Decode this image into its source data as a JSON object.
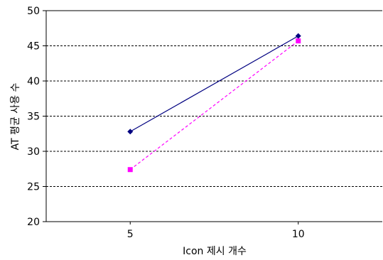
{
  "chart_data": {
    "type": "line",
    "title": "",
    "xlabel": "Icon 제시 개수",
    "ylabel": "AT 평균 사용 수",
    "categories": [
      "5",
      "10"
    ],
    "x": [
      5,
      10
    ],
    "xlim": [
      2.5,
      12.5
    ],
    "ylim": [
      20,
      50
    ],
    "yticks": [
      "20",
      "25",
      "30",
      "35",
      "40",
      "45",
      "50"
    ],
    "grid": "horizontal dashed",
    "legend": "none",
    "series": [
      {
        "values": [
          32.8,
          46.4
        ],
        "color": "#000080",
        "line_style": "solid",
        "marker": "diamond"
      },
      {
        "values": [
          27.4,
          45.7
        ],
        "color": "#ff00ff",
        "line_style": "dashed",
        "marker": "square"
      }
    ]
  }
}
